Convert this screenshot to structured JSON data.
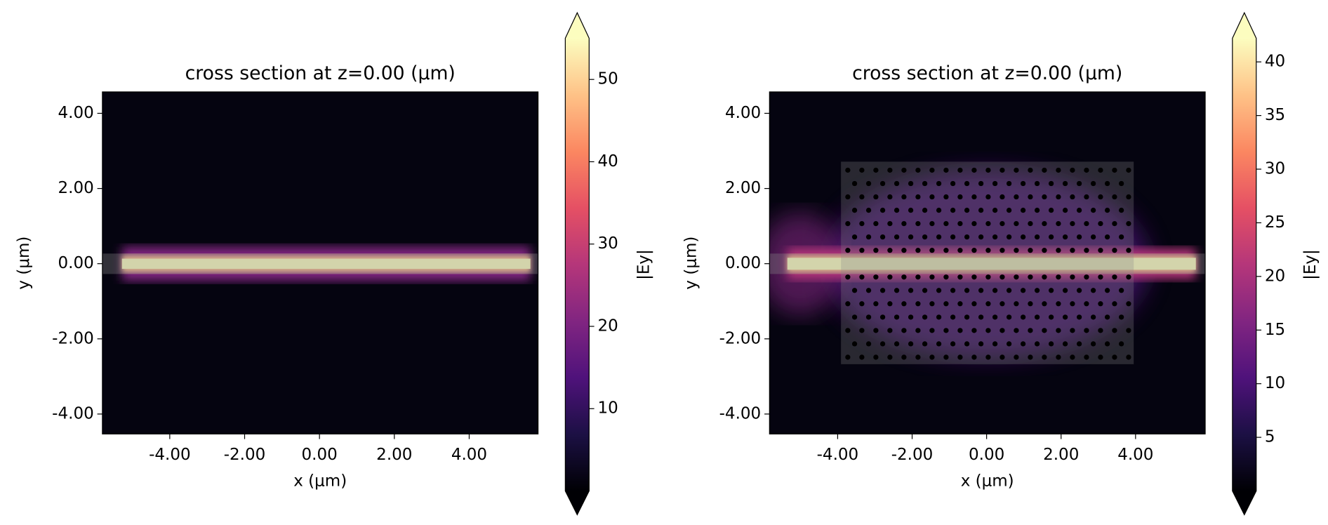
{
  "chart_data": [
    {
      "type": "heatmap",
      "title": "cross section at z=0.00 (μm)",
      "xlabel": "x (μm)",
      "ylabel": "y (μm)",
      "xlim": [
        -5.8,
        5.84
      ],
      "ylim": [
        -4.53,
        4.57
      ],
      "xticks": [
        {
          "value": -4,
          "label": "-4.00"
        },
        {
          "value": -2,
          "label": "-2.00"
        },
        {
          "value": 0,
          "label": "0.00"
        },
        {
          "value": 2,
          "label": "2.00"
        },
        {
          "value": 4,
          "label": "4.00"
        }
      ],
      "yticks": [
        {
          "value": -4,
          "label": "-4.00"
        },
        {
          "value": -2,
          "label": "-2.00"
        },
        {
          "value": 0,
          "label": "0.00"
        },
        {
          "value": 2,
          "label": "2.00"
        },
        {
          "value": 4,
          "label": "4.00"
        }
      ],
      "colorbar": {
        "label": "|Ey|",
        "lim": [
          0,
          55
        ],
        "ticks": [
          10,
          20,
          30,
          40,
          50
        ],
        "extend": "both",
        "colormap": [
          "#000004",
          "#1c1044",
          "#4f127b",
          "#812581",
          "#b5367a",
          "#e55064",
          "#fb8761",
          "#fec287",
          "#fcfdbf"
        ]
      }
    },
    {
      "type": "heatmap",
      "title": "cross section at z=0.00 (μm)",
      "xlabel": "x (μm)",
      "ylabel": "y (μm)",
      "xlim": [
        -5.83,
        5.87
      ],
      "ylim": [
        -4.53,
        4.57
      ],
      "xticks": [
        {
          "value": -4,
          "label": "-4.00"
        },
        {
          "value": -2,
          "label": "-2.00"
        },
        {
          "value": 0,
          "label": "0.00"
        },
        {
          "value": 2,
          "label": "2.00"
        },
        {
          "value": 4,
          "label": "4.00"
        }
      ],
      "yticks": [
        {
          "value": -4,
          "label": "-4.00"
        },
        {
          "value": -2,
          "label": "-2.00"
        },
        {
          "value": 0,
          "label": "0.00"
        },
        {
          "value": 2,
          "label": "2.00"
        },
        {
          "value": 4,
          "label": "4.00"
        }
      ],
      "colorbar": {
        "label": "|Ey|",
        "lim": [
          0,
          42.2
        ],
        "ticks": [
          5,
          10,
          15,
          20,
          25,
          30,
          35,
          40
        ],
        "extend": "both",
        "colormap": [
          "#000004",
          "#1c1044",
          "#4f127b",
          "#812581",
          "#b5367a",
          "#e55064",
          "#fb8761",
          "#fec287",
          "#fcfdbf"
        ]
      }
    }
  ]
}
